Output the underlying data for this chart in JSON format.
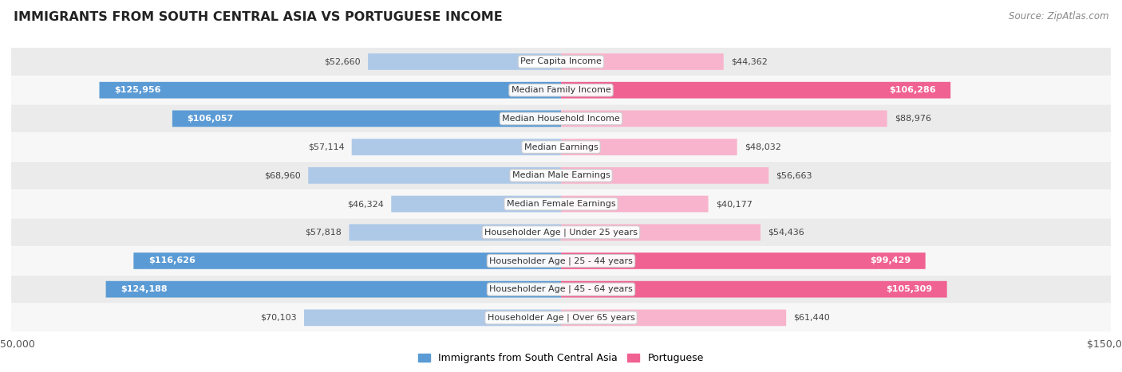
{
  "title": "IMMIGRANTS FROM SOUTH CENTRAL ASIA VS PORTUGUESE INCOME",
  "source": "Source: ZipAtlas.com",
  "categories": [
    "Per Capita Income",
    "Median Family Income",
    "Median Household Income",
    "Median Earnings",
    "Median Male Earnings",
    "Median Female Earnings",
    "Householder Age | Under 25 years",
    "Householder Age | 25 - 44 years",
    "Householder Age | 45 - 64 years",
    "Householder Age | Over 65 years"
  ],
  "left_values": [
    52660,
    125956,
    106057,
    57114,
    68960,
    46324,
    57818,
    116626,
    124188,
    70103
  ],
  "right_values": [
    44362,
    106286,
    88976,
    48032,
    56663,
    40177,
    54436,
    99429,
    105309,
    61440
  ],
  "left_labels": [
    "$52,660",
    "$125,956",
    "$106,057",
    "$57,114",
    "$68,960",
    "$46,324",
    "$57,818",
    "$116,626",
    "$124,188",
    "$70,103"
  ],
  "right_labels": [
    "$44,362",
    "$106,286",
    "$88,976",
    "$48,032",
    "$56,663",
    "$40,177",
    "$54,436",
    "$99,429",
    "$105,309",
    "$61,440"
  ],
  "max_value": 150000,
  "left_color_strong": "#5b9bd5",
  "left_color_light": "#aec8e8",
  "right_color_strong": "#f06292",
  "right_color_light": "#f8b4cc",
  "threshold": 90000,
  "legend_left": "Immigrants from South Central Asia",
  "legend_right": "Portuguese",
  "bg_color": "#ffffff",
  "row_bg_even": "#ebebeb",
  "row_bg_odd": "#f7f7f7",
  "label_inside_threshold": 90000,
  "outside_label_color": "#444444"
}
